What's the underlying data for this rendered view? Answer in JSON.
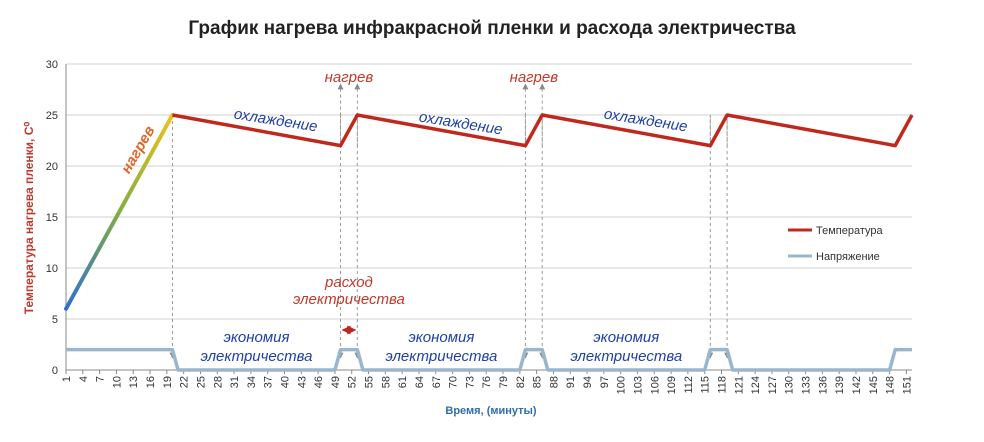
{
  "chart_data": {
    "type": "line",
    "title": "График нагрева инфракрасной пленки и расхода электричества",
    "xlabel": "Время, (минуты)",
    "ylabel": "Температура нагрева пленки, С⁰",
    "ylim": [
      0,
      30
    ],
    "yticks": [
      0,
      5,
      10,
      15,
      20,
      25,
      30
    ],
    "xticks": [
      1,
      4,
      7,
      10,
      13,
      16,
      19,
      22,
      25,
      28,
      31,
      34,
      37,
      40,
      43,
      46,
      49,
      52,
      55,
      58,
      61,
      64,
      67,
      70,
      73,
      76,
      79,
      82,
      85,
      88,
      91,
      94,
      97,
      100,
      103,
      106,
      109,
      112,
      115,
      118,
      121,
      124,
      127,
      130,
      133,
      136,
      139,
      142,
      145,
      148,
      151
    ],
    "xlim": [
      1,
      152
    ],
    "grid": "horizontal",
    "legend_position": "right",
    "series": [
      {
        "name": "Температура",
        "color": "#c0281e",
        "x": [
          1,
          20,
          50,
          53,
          83,
          86,
          116,
          119,
          149,
          152
        ],
        "y": [
          6,
          25,
          22,
          25,
          22,
          25,
          22,
          25,
          22,
          25
        ]
      },
      {
        "name": "Напряжение",
        "color": "#9ab6cc",
        "x": [
          1,
          20,
          21,
          49,
          50,
          53,
          54,
          82,
          83,
          86,
          87,
          115,
          116,
          119,
          120,
          148,
          149,
          152
        ],
        "y": [
          2,
          2,
          0,
          0,
          2,
          2,
          0,
          0,
          2,
          2,
          0,
          0,
          2,
          2,
          0,
          0,
          2,
          2
        ]
      }
    ],
    "annotations": {
      "heat_up": "нагрев",
      "heat_label": "нагрев",
      "cooling": "охлаждение",
      "consumption_line1": "расход",
      "consumption_line2": "электричества",
      "economy_line1": "экономия",
      "economy_line2": "электричества"
    }
  }
}
